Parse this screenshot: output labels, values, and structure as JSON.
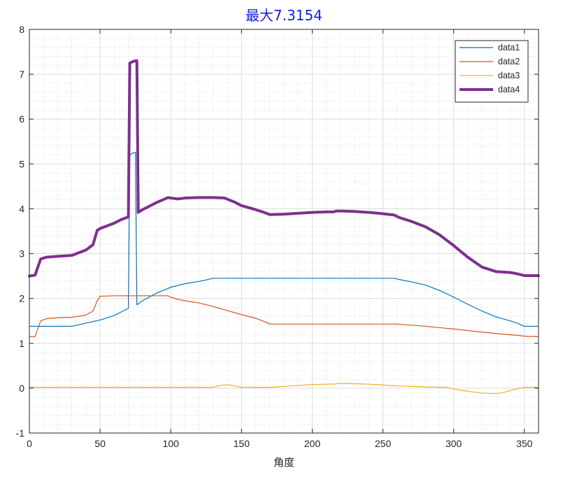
{
  "chart_data": {
    "type": "line",
    "title": "最大7.3154",
    "xlabel": "角度",
    "ylabel": "",
    "xlim": [
      0,
      360
    ],
    "ylim": [
      -1,
      8
    ],
    "xticks": [
      0,
      50,
      100,
      150,
      200,
      250,
      300,
      350
    ],
    "yticks": [
      -1,
      0,
      1,
      2,
      3,
      4,
      5,
      6,
      7,
      8
    ],
    "grid": true,
    "minor_grid": true,
    "legend_position": "top-right",
    "series": [
      {
        "name": "data1",
        "color": "#0072BD",
        "width": 1.2,
        "x": [
          0,
          10,
          20,
          30,
          40,
          50,
          60,
          65,
          70,
          71,
          73,
          75,
          76,
          77,
          80,
          90,
          100,
          110,
          120,
          130,
          140,
          150,
          200,
          220,
          250,
          258,
          262,
          270,
          280,
          290,
          300,
          310,
          320,
          330,
          340,
          345,
          350,
          355,
          360
        ],
        "y": [
          1.38,
          1.38,
          1.38,
          1.38,
          1.45,
          1.52,
          1.62,
          1.7,
          1.78,
          5.2,
          5.24,
          5.26,
          1.86,
          1.88,
          1.95,
          2.12,
          2.25,
          2.33,
          2.38,
          2.45,
          2.45,
          2.45,
          2.45,
          2.45,
          2.45,
          2.45,
          2.42,
          2.37,
          2.3,
          2.18,
          2.03,
          1.87,
          1.72,
          1.59,
          1.5,
          1.45,
          1.38,
          1.38,
          1.38
        ]
      },
      {
        "name": "data2",
        "color": "#D95319",
        "width": 1.2,
        "x": [
          0,
          4,
          8,
          12,
          20,
          30,
          40,
          45,
          48,
          50,
          60,
          70,
          80,
          90,
          98,
          100,
          105,
          110,
          120,
          130,
          140,
          150,
          160,
          165,
          170,
          200,
          250,
          260,
          280,
          300,
          320,
          340,
          345,
          350,
          360
        ],
        "y": [
          1.15,
          1.15,
          1.5,
          1.55,
          1.57,
          1.58,
          1.63,
          1.72,
          1.95,
          2.05,
          2.06,
          2.06,
          2.06,
          2.06,
          2.06,
          2.03,
          1.98,
          1.95,
          1.9,
          1.82,
          1.73,
          1.64,
          1.56,
          1.5,
          1.43,
          1.43,
          1.43,
          1.43,
          1.38,
          1.32,
          1.25,
          1.19,
          1.18,
          1.16,
          1.15
        ]
      },
      {
        "name": "data3",
        "color": "#EDB120",
        "width": 1.2,
        "x": [
          0,
          50,
          100,
          130,
          135,
          140,
          145,
          150,
          170,
          190,
          200,
          210,
          215,
          220,
          230,
          240,
          250,
          260,
          270,
          280,
          290,
          295,
          300,
          310,
          320,
          330,
          335,
          340,
          350,
          360
        ],
        "y": [
          0.02,
          0.02,
          0.02,
          0.02,
          0.06,
          0.08,
          0.05,
          0.02,
          0.02,
          0.06,
          0.08,
          0.09,
          0.09,
          0.11,
          0.1,
          0.09,
          0.07,
          0.05,
          0.04,
          0.03,
          0.02,
          0.02,
          -0.02,
          -0.07,
          -0.11,
          -0.12,
          -0.1,
          -0.05,
          0.02,
          0.02
        ]
      },
      {
        "name": "data4",
        "color": "#7E2F8E",
        "width": 4,
        "x": [
          0,
          4,
          8,
          12,
          20,
          30,
          40,
          45,
          48,
          50,
          60,
          65,
          70,
          71,
          73,
          75,
          76,
          77,
          80,
          90,
          98,
          100,
          105,
          110,
          120,
          130,
          138,
          145,
          150,
          160,
          165,
          170,
          180,
          190,
          200,
          210,
          215,
          217,
          220,
          230,
          240,
          250,
          258,
          262,
          270,
          280,
          290,
          300,
          310,
          320,
          330,
          340,
          345,
          350,
          360
        ],
        "y": [
          2.5,
          2.52,
          2.88,
          2.92,
          2.94,
          2.96,
          3.08,
          3.2,
          3.52,
          3.56,
          3.68,
          3.76,
          3.82,
          7.25,
          7.28,
          7.3,
          7.3,
          3.92,
          3.98,
          4.14,
          4.25,
          4.24,
          4.22,
          4.24,
          4.25,
          4.25,
          4.24,
          4.15,
          4.07,
          3.98,
          3.93,
          3.87,
          3.88,
          3.9,
          3.92,
          3.93,
          3.93,
          3.95,
          3.95,
          3.94,
          3.92,
          3.89,
          3.86,
          3.8,
          3.72,
          3.6,
          3.42,
          3.18,
          2.92,
          2.7,
          2.6,
          2.58,
          2.55,
          2.51,
          2.51
        ]
      }
    ]
  }
}
